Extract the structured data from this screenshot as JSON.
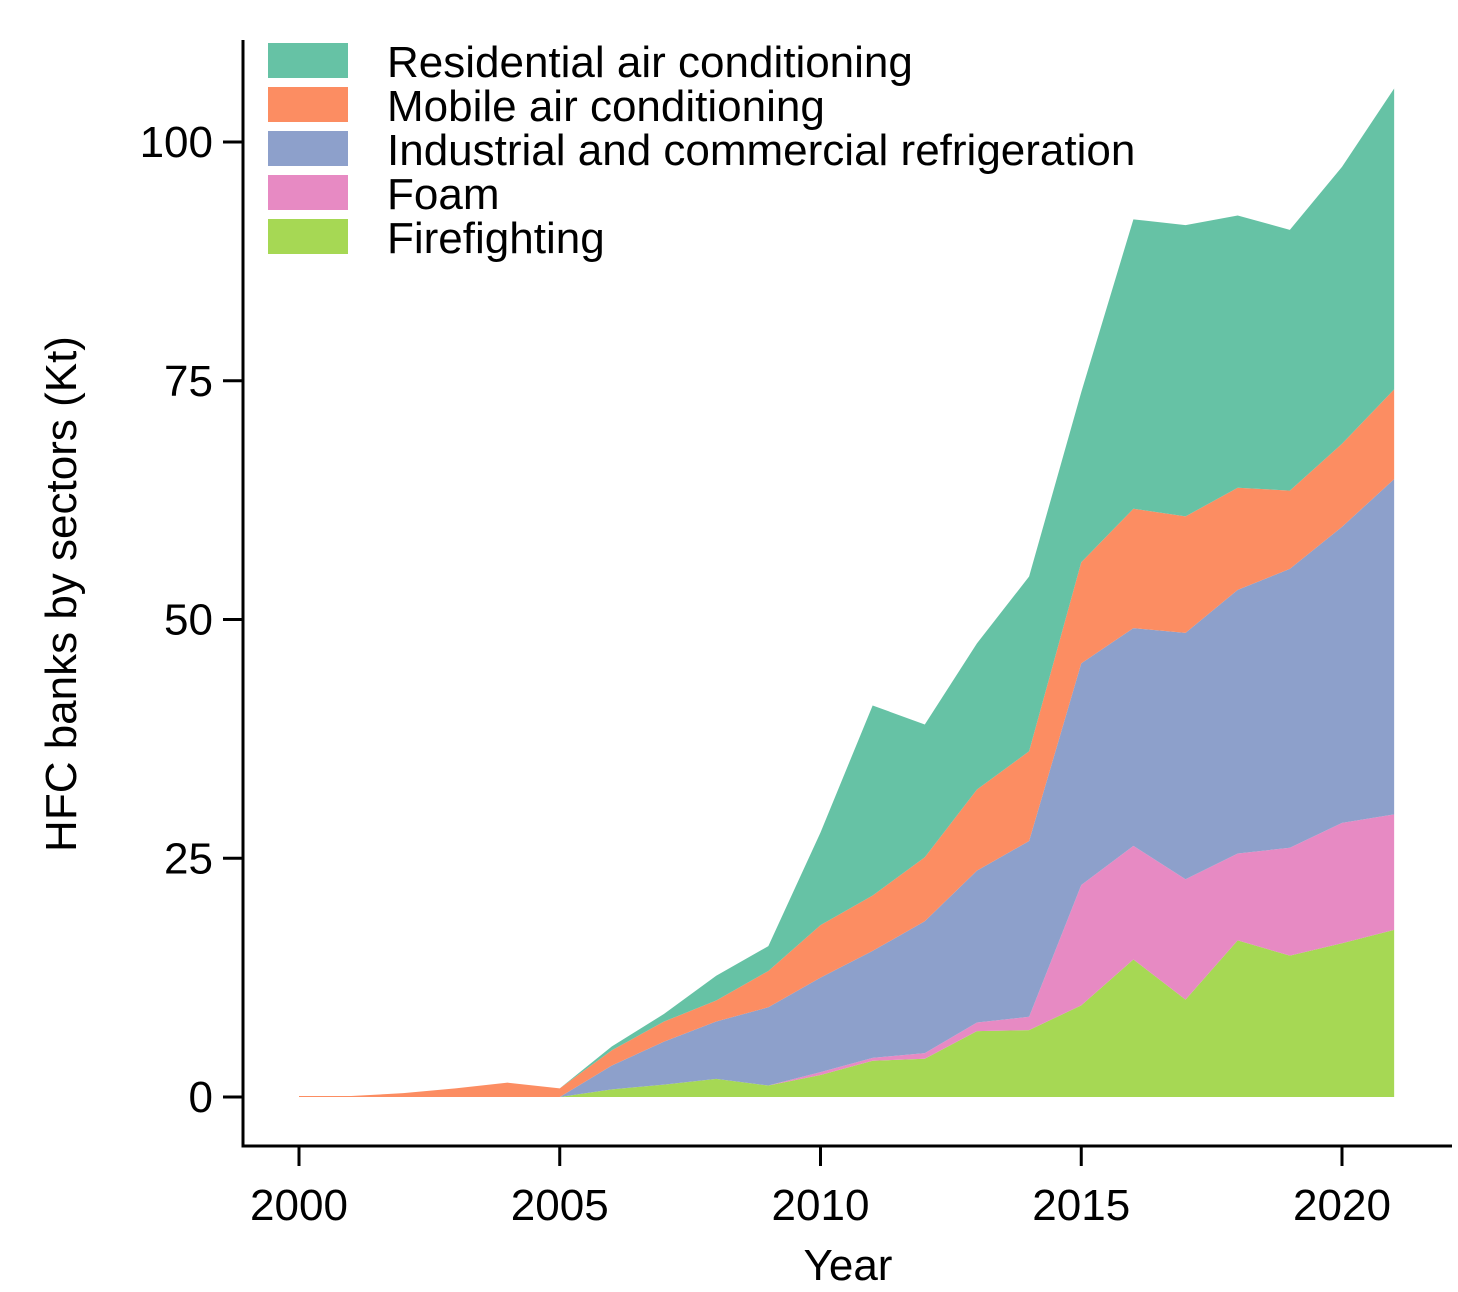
{
  "chart_data": {
    "type": "area",
    "stacked": true,
    "title": "",
    "xlabel": "Year",
    "ylabel": "HFC banks by sectors (Kt)",
    "xlim": [
      1999,
      2022
    ],
    "ylim": [
      -5,
      110
    ],
    "xticks": [
      2000,
      2005,
      2010,
      2015,
      2020
    ],
    "yticks": [
      0,
      25,
      50,
      75,
      100
    ],
    "legend_position": "top-left",
    "x": [
      2000,
      2001,
      2002,
      2003,
      2004,
      2005,
      2006,
      2007,
      2008,
      2009,
      2010,
      2011,
      2012,
      2013,
      2014,
      2015,
      2016,
      2017,
      2018,
      2019,
      2020,
      2021
    ],
    "series": [
      {
        "name": "Firefighting",
        "color": "#a6d854",
        "values": [
          0,
          0,
          0,
          0,
          0,
          0,
          0.8,
          1.3,
          1.9,
          1.2,
          2.3,
          3.8,
          4.0,
          6.9,
          7.0,
          9.6,
          14.4,
          10.2,
          16.4,
          14.8,
          16.1,
          17.5
        ]
      },
      {
        "name": "Foam",
        "color": "#e78ac3",
        "values": [
          0,
          0,
          0,
          0,
          0,
          0,
          0,
          0,
          0,
          0,
          0.3,
          0.3,
          0.6,
          0.9,
          1.4,
          12.6,
          11.9,
          12.6,
          9.1,
          11.3,
          12.6,
          12.1
        ]
      },
      {
        "name": "Industrial and commercial refrigeration",
        "color": "#8da0cb",
        "values": [
          0,
          0,
          0,
          0,
          0,
          0,
          2.5,
          4.5,
          6.0,
          8.2,
          9.9,
          11.2,
          13.8,
          15.9,
          18.4,
          23.2,
          22.8,
          25.8,
          27.6,
          29.2,
          31.0,
          35.1
        ]
      },
      {
        "name": "Mobile air conditioning",
        "color": "#fc8d62",
        "values": [
          0.1,
          0.1,
          0.4,
          0.9,
          1.5,
          0.9,
          1.6,
          2.1,
          2.2,
          3.8,
          5.5,
          5.8,
          6.7,
          8.5,
          9.4,
          10.6,
          12.5,
          12.2,
          10.7,
          8.2,
          8.7,
          9.4
        ]
      },
      {
        "name": "Residential air conditioning",
        "color": "#66c2a5",
        "values": [
          0,
          0,
          0,
          0,
          0,
          0,
          0.4,
          0.8,
          2.6,
          2.6,
          9.7,
          19.9,
          13.9,
          15.3,
          18.3,
          17.8,
          30.3,
          30.5,
          28.5,
          27.3,
          29.0,
          31.5
        ]
      }
    ],
    "legend_order": [
      "Residential air conditioning",
      "Mobile air conditioning",
      "Industrial and commercial refrigeration",
      "Foam",
      "Firefighting"
    ]
  }
}
